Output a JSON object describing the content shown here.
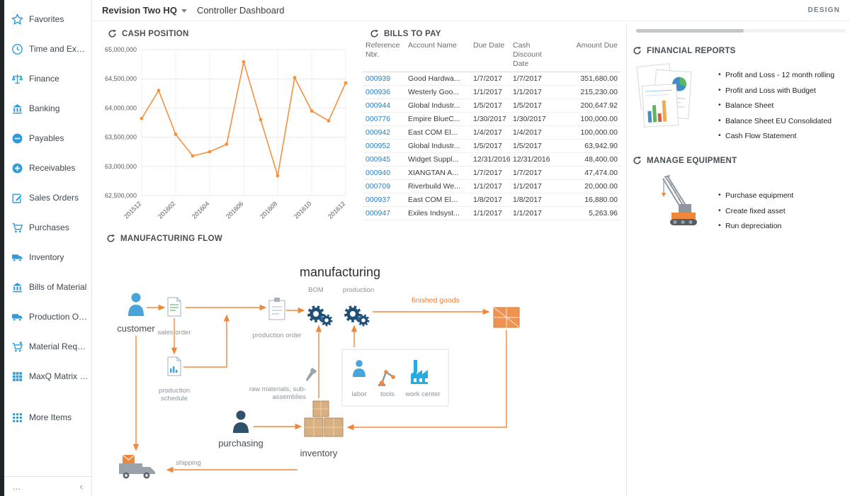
{
  "colors": {
    "accent_orange": "#f0883b",
    "chart_line": "#f6913e",
    "link_blue": "#2e7fc1",
    "sidebar_icon_blue": "#2e9bd6",
    "gear_navy": "#1d4e77",
    "work_center_blue": "#29abe2"
  },
  "header": {
    "company": "Revision Two HQ",
    "page_title": "Controller Dashboard",
    "design_label": "DESIGN"
  },
  "sidebar": {
    "items": [
      {
        "label": "Favorites",
        "icon": "star"
      },
      {
        "label": "Time and Expenses",
        "icon": "clock"
      },
      {
        "label": "Finance",
        "icon": "scales"
      },
      {
        "label": "Banking",
        "icon": "bank"
      },
      {
        "label": "Payables",
        "icon": "minus-circle"
      },
      {
        "label": "Receivables",
        "icon": "plus-circle"
      },
      {
        "label": "Sales Orders",
        "icon": "edit"
      },
      {
        "label": "Purchases",
        "icon": "cart"
      },
      {
        "label": "Inventory",
        "icon": "truck"
      },
      {
        "label": "Bills of Material",
        "icon": "bank"
      },
      {
        "label": "Production Orders",
        "icon": "truck"
      },
      {
        "label": "Material Requirem...",
        "icon": "cart-plus"
      },
      {
        "label": "MaxQ Matrix Invent...",
        "icon": "grid"
      },
      {
        "label": "More Items",
        "icon": "dots-grid",
        "gap": true
      }
    ],
    "footer_more": "...",
    "footer_collapse": "‹"
  },
  "panels": {
    "cash_position": {
      "title": "CASH POSITION"
    },
    "bills_to_pay": {
      "title": "BILLS TO PAY",
      "columns": [
        "Reference Nbr.",
        "Account Name",
        "Due Date",
        "Cash Discount Date",
        "Amount Due"
      ],
      "rows": [
        {
          "reference": "000939",
          "account": "Good Hardwa...",
          "due_date": "1/7/2017",
          "cash_discount_date": "1/7/2017",
          "amount_due": "351,680.00"
        },
        {
          "reference": "000936",
          "account": "Westerly Goo...",
          "due_date": "1/1/2017",
          "cash_discount_date": "1/1/2017",
          "amount_due": "215,230.00"
        },
        {
          "reference": "000944",
          "account": "Global Industr...",
          "due_date": "1/5/2017",
          "cash_discount_date": "1/5/2017",
          "amount_due": "200,647.92"
        },
        {
          "reference": "000776",
          "account": "Empire BlueC...",
          "due_date": "1/30/2017",
          "cash_discount_date": "1/30/2017",
          "amount_due": "100,000.00"
        },
        {
          "reference": "000942",
          "account": "East COM El...",
          "due_date": "1/4/2017",
          "cash_discount_date": "1/4/2017",
          "amount_due": "100,000.00"
        },
        {
          "reference": "000952",
          "account": "Global Industr...",
          "due_date": "1/5/2017",
          "cash_discount_date": "1/5/2017",
          "amount_due": "63,942.90"
        },
        {
          "reference": "000945",
          "account": "Widget Suppl...",
          "due_date": "12/31/2016",
          "cash_discount_date": "12/31/2016",
          "amount_due": "48,400.00"
        },
        {
          "reference": "000940",
          "account": "XIANGTAN A...",
          "due_date": "1/7/2017",
          "cash_discount_date": "1/7/2017",
          "amount_due": "47,474.00"
        },
        {
          "reference": "000709",
          "account": "Riverbuild We...",
          "due_date": "1/1/2017",
          "cash_discount_date": "1/1/2017",
          "amount_due": "20,000.00"
        },
        {
          "reference": "000937",
          "account": "East COM El...",
          "due_date": "1/8/2017",
          "cash_discount_date": "1/8/2017",
          "amount_due": "16,880.00"
        },
        {
          "reference": "000947",
          "account": "Exiles Indsyst...",
          "due_date": "1/1/2017",
          "cash_discount_date": "1/1/2017",
          "amount_due": "5,263.96"
        }
      ]
    },
    "financial_reports": {
      "title": "FINANCIAL REPORTS",
      "links": [
        "Profit and Loss - 12 month rolling",
        "Profit and Loss with Budget",
        "Balance Sheet",
        "Balance Sheet EU Consolidated",
        "Cash Flow Statement"
      ]
    },
    "manage_equipment": {
      "title": "MANAGE EQUIPMENT",
      "links": [
        "Purchase equipment",
        "Create fixed asset",
        "Run depreciation"
      ]
    },
    "manufacturing_flow": {
      "title": "MANUFACTURING FLOW",
      "labels": {
        "heading": "manufacturing",
        "bom": "BOM",
        "production": "production",
        "customer": "customer",
        "sales_order": "sales order",
        "production_order": "production order",
        "production_schedule": "production schedule",
        "finished_goods": "finished goods",
        "raw_materials": "raw materials, sub-assemblies",
        "labor": "labor",
        "tools": "tools",
        "work_center": "work center",
        "purchasing": "purchasing",
        "inventory": "inventory",
        "shipping": "shipping"
      }
    }
  },
  "chart_data": {
    "type": "line",
    "title": "Cash Position",
    "x": [
      "201512",
      "201601",
      "201602",
      "201603",
      "201604",
      "201605",
      "201606",
      "201607",
      "201608",
      "201609",
      "201610",
      "201611",
      "201612"
    ],
    "series": [
      {
        "name": "Cash Position",
        "values": [
          63820000,
          64300000,
          63550000,
          63180000,
          63250000,
          63380000,
          64790000,
          63800000,
          62840000,
          64520000,
          63950000,
          63780000,
          64430000
        ]
      }
    ],
    "ylim": [
      62500000,
      65000000
    ],
    "y_tick_interval": 500000,
    "x_tick_labels": [
      "201512",
      "201602",
      "201604",
      "201606",
      "201608",
      "201610",
      "201612"
    ],
    "grid": true,
    "legend": false,
    "line_color": "#f6913e"
  }
}
